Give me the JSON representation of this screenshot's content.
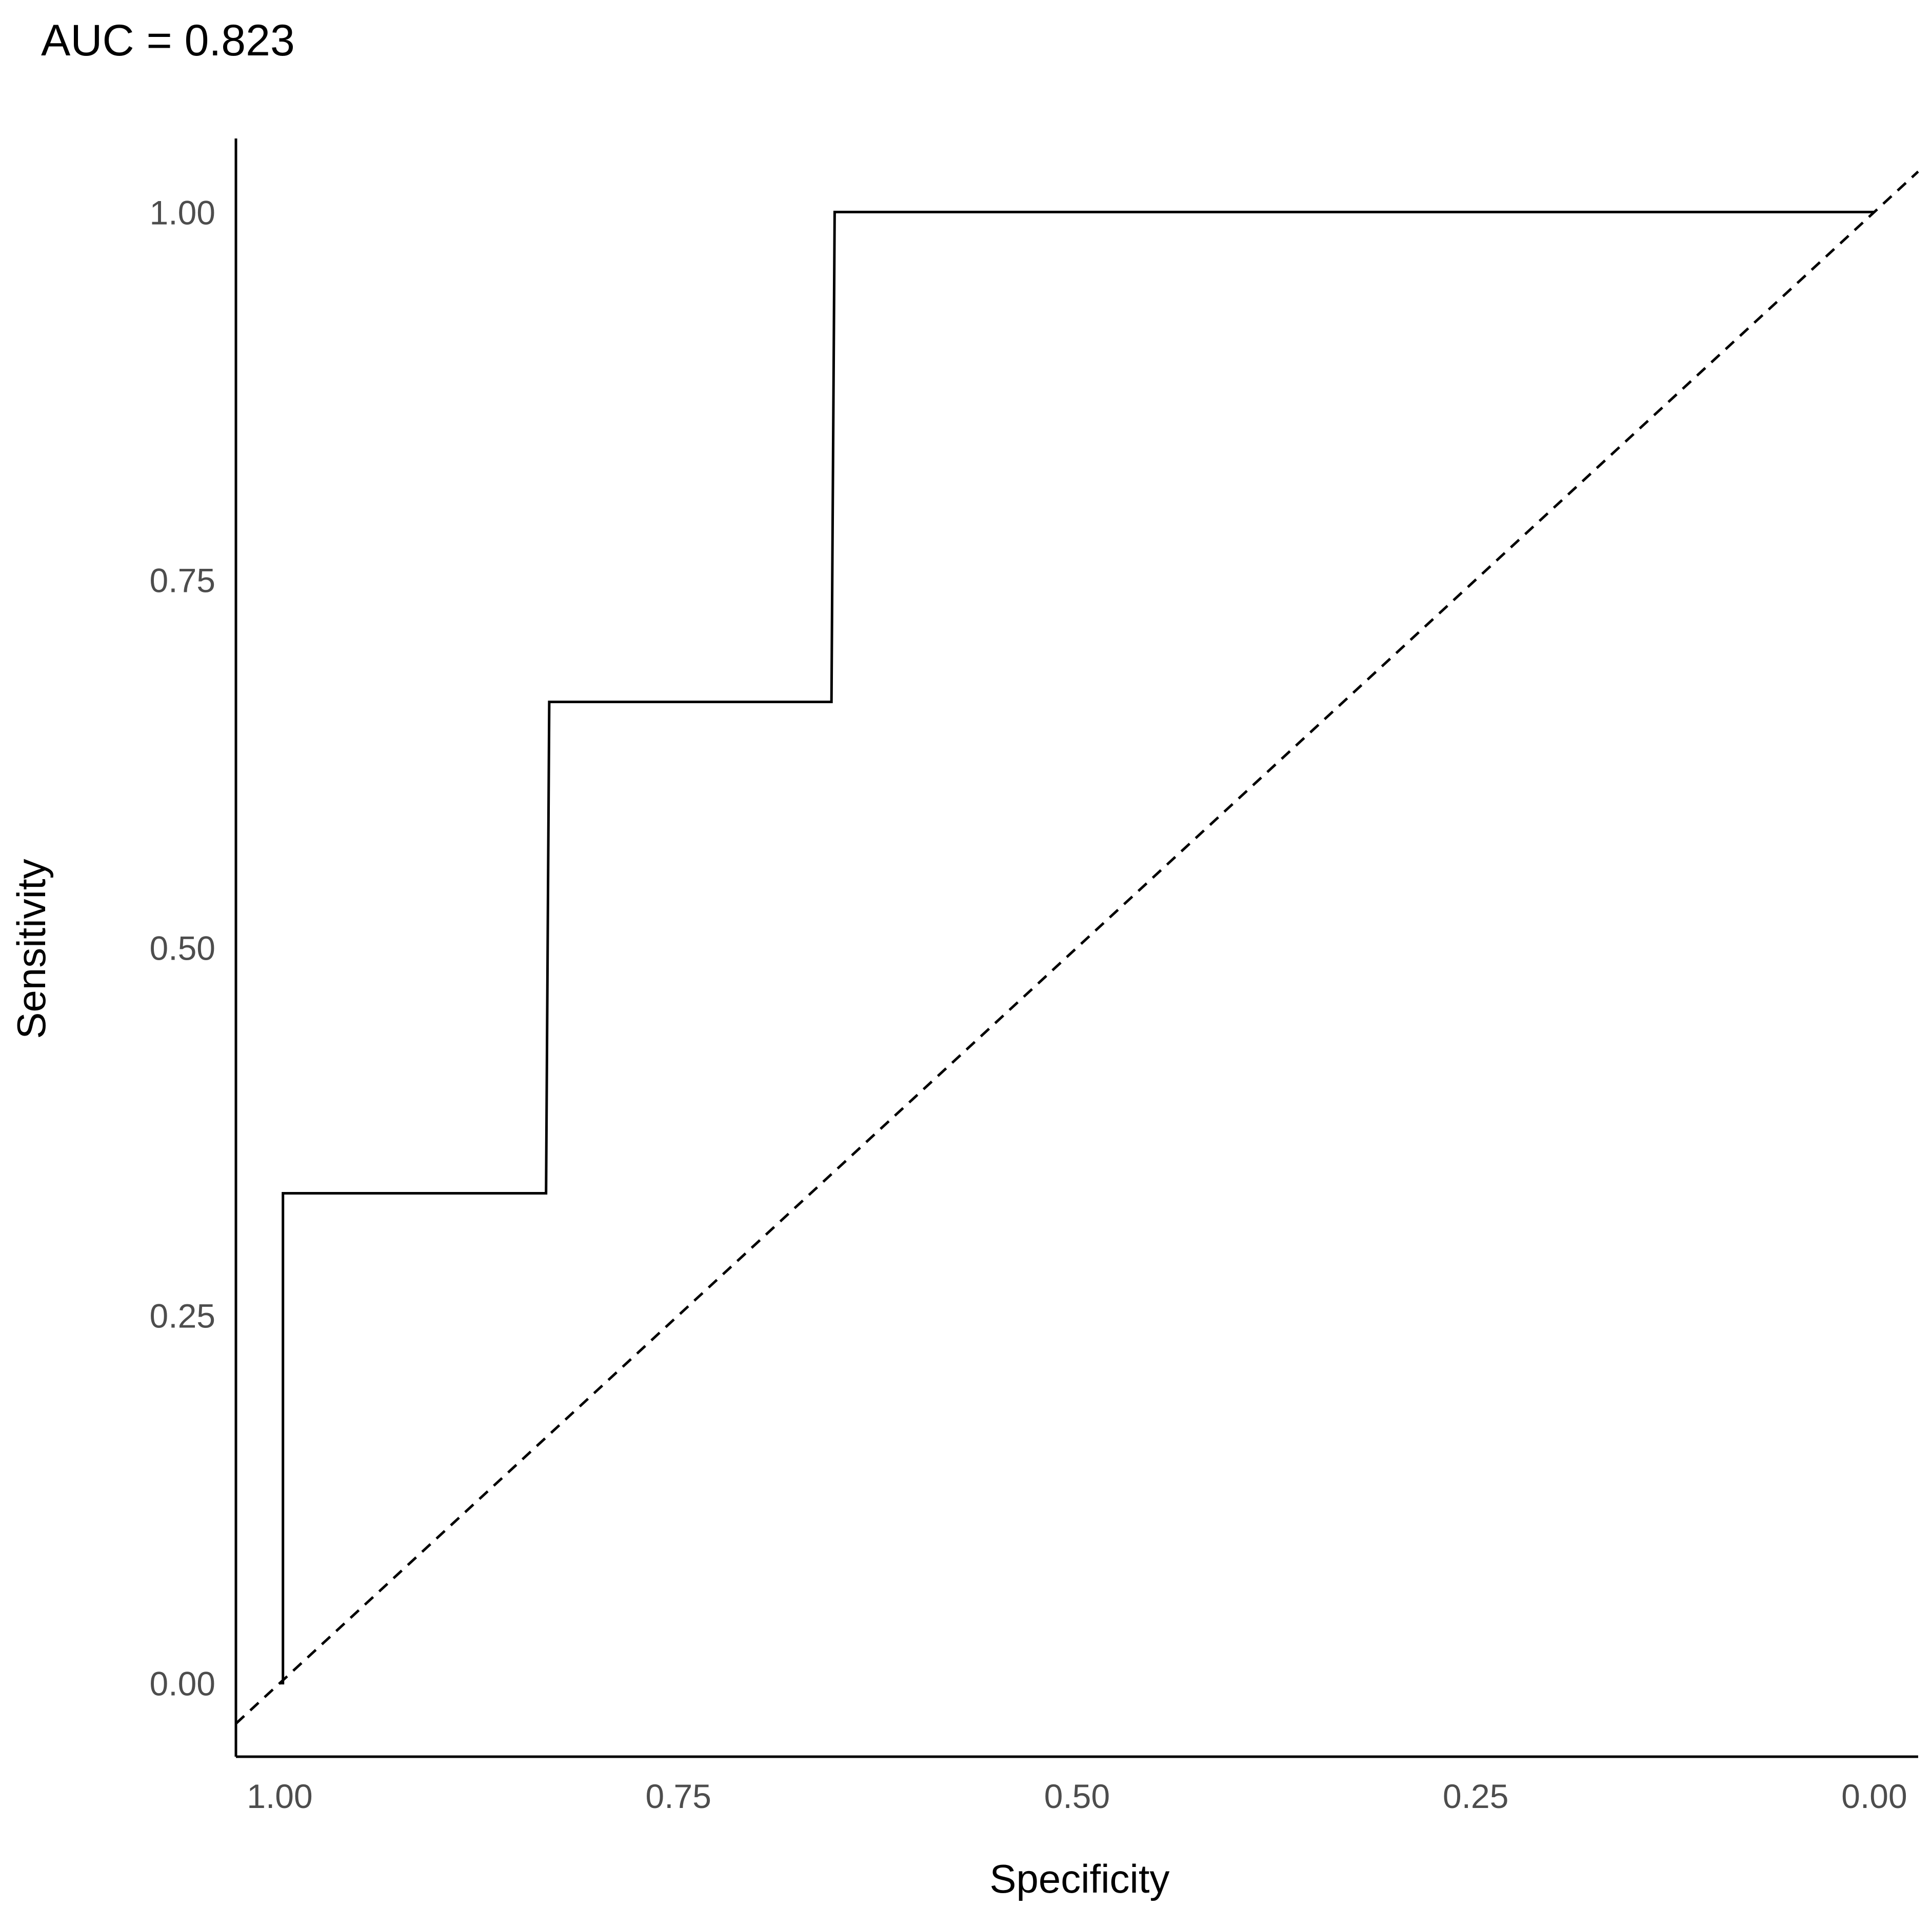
{
  "chart_data": {
    "type": "line",
    "title": "AUC = 0.823",
    "xlabel": "Specificity",
    "ylabel": "Sensitivity",
    "x_reversed": true,
    "xlim": [
      1.0275,
      -0.0275
    ],
    "ylim": [
      -0.05,
      1.05
    ],
    "x_ticks": [
      1.0,
      0.75,
      0.5,
      0.25,
      0.0
    ],
    "x_tick_labels": [
      "1.00",
      "0.75",
      "0.50",
      "0.25",
      "0.00"
    ],
    "y_ticks": [
      0.0,
      0.25,
      0.5,
      0.75,
      1.0
    ],
    "y_tick_labels": [
      "0.00",
      "0.25",
      "0.50",
      "0.75",
      "1.00"
    ],
    "grid": false,
    "series": [
      {
        "style": "solid",
        "color": "#000000",
        "points": [
          {
            "specificity": 1.0,
            "sensitivity": 0.0
          },
          {
            "specificity": 0.998,
            "sensitivity": 0.0
          },
          {
            "specificity": 0.998,
            "sensitivity": 0.333
          },
          {
            "specificity": 0.833,
            "sensitivity": 0.333
          },
          {
            "specificity": 0.831,
            "sensitivity": 0.667
          },
          {
            "specificity": 0.654,
            "sensitivity": 0.667
          },
          {
            "specificity": 0.652,
            "sensitivity": 1.0
          },
          {
            "specificity": 0.0,
            "sensitivity": 1.0
          }
        ]
      },
      {
        "style": "dashed",
        "color": "#000000",
        "points": [
          {
            "specificity": 1.0275,
            "sensitivity": -0.0275
          },
          {
            "specificity": -0.0275,
            "sensitivity": 1.0275
          }
        ]
      }
    ]
  }
}
